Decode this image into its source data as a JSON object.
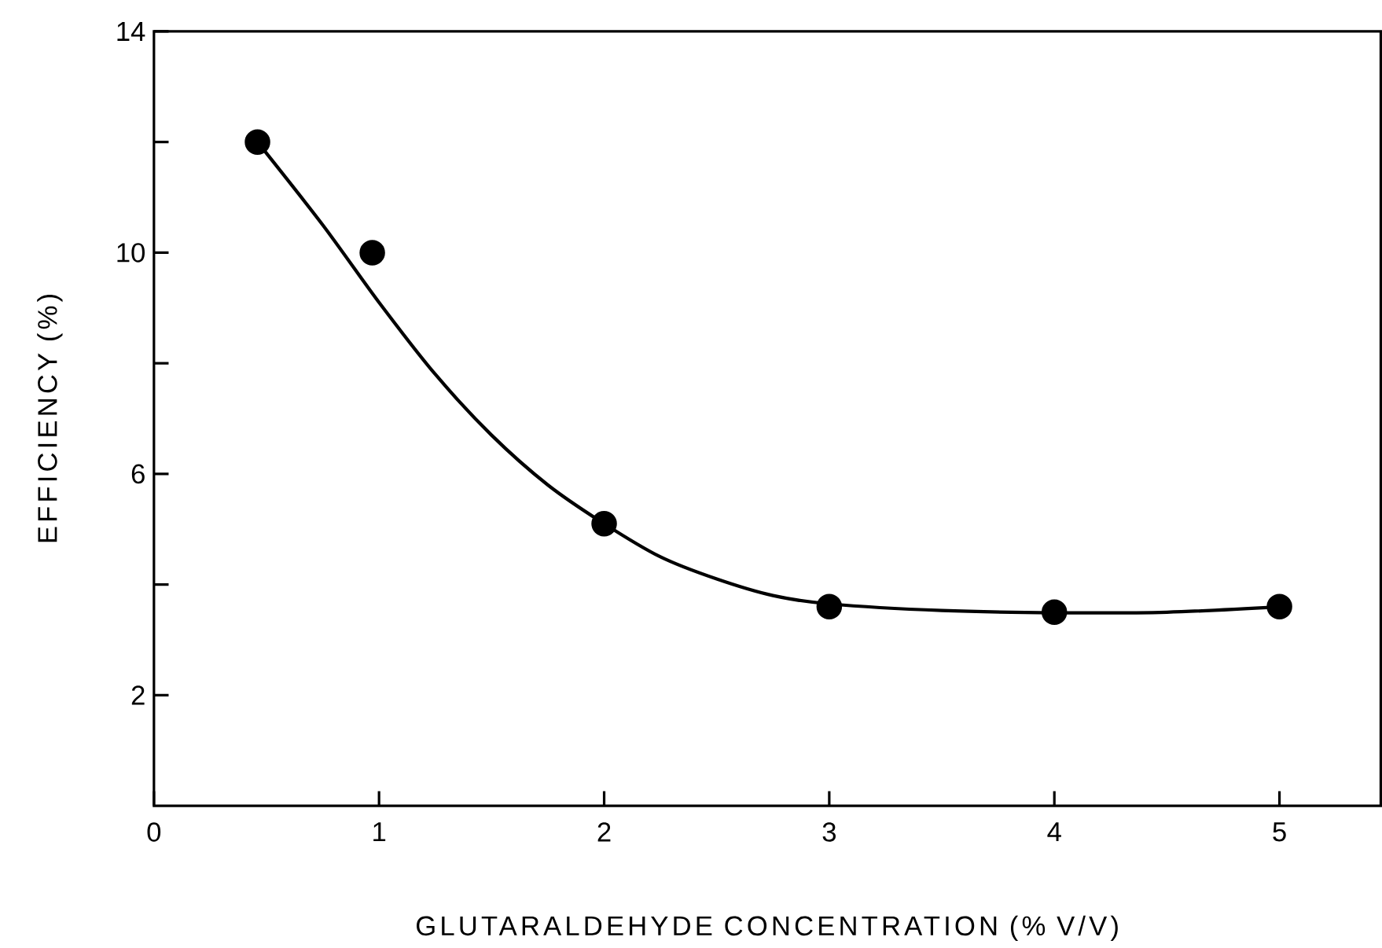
{
  "chart_data": {
    "type": "scatter",
    "xlabel": "GLUTARALDEHYDE CONCENTRATION (% V/V)",
    "ylabel": "EFFICIENCY (%)",
    "xlim": [
      0,
      5.45
    ],
    "ylim": [
      0,
      14
    ],
    "xticks": [
      0,
      1,
      2,
      3,
      4,
      5
    ],
    "yticks": [
      {
        "value": 2,
        "label": "2"
      },
      {
        "value": 4,
        "label": null
      },
      {
        "value": 6,
        "label": "6"
      },
      {
        "value": 8,
        "label": null
      },
      {
        "value": 10,
        "label": "10"
      },
      {
        "value": 12,
        "label": null
      },
      {
        "value": 14,
        "label": "14"
      }
    ],
    "series": [
      {
        "marker": "circle",
        "color": "#000000",
        "x": [
          0.46,
          0.97,
          2,
          3,
          4,
          5
        ],
        "values": [
          12,
          10,
          5.1,
          3.6,
          3.5,
          3.6
        ]
      },
      {
        "type": "line",
        "marker": "none",
        "line_style": "solid",
        "color": "#000000",
        "x": [
          0.46,
          0.75,
          1,
          1.25,
          1.5,
          1.75,
          2,
          2.25,
          2.5,
          2.75,
          3,
          3.5,
          4,
          4.5,
          5
        ],
        "values": [
          12,
          10.5,
          9.1,
          7.8,
          6.7,
          5.8,
          5.1,
          4.5,
          4.1,
          3.8,
          3.65,
          3.53,
          3.49,
          3.5,
          3.6
        ]
      }
    ]
  }
}
